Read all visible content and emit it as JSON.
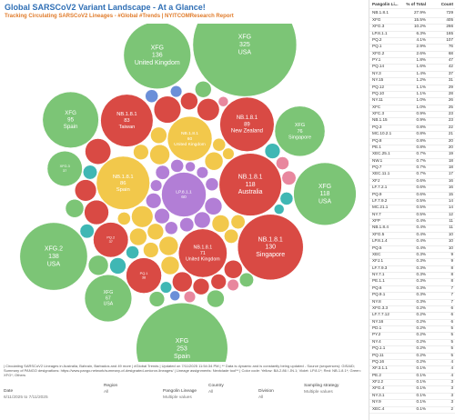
{
  "header": {
    "title": "Global SARSCoV2 Variant Landscape - At a Glance!",
    "subtitle": "Tracking Circulating SARSCoV2 Lineages - #Global #Trends | NYITCOMResearch Report"
  },
  "bubbles": [
    {
      "label": "LP.8.1.1",
      "value": 60,
      "color": "#b27ed6"
    },
    {
      "value": 9,
      "color": "#b27ed6"
    },
    {
      "value": 7,
      "color": "#b27ed6"
    },
    {
      "value": 8,
      "color": "#b27ed6"
    },
    {
      "value": 6,
      "color": "#b27ed6"
    },
    {
      "value": 5,
      "color": "#b27ed6"
    },
    {
      "value": 7,
      "color": "#b27ed6"
    },
    {
      "value": 4,
      "color": "#b27ed6"
    },
    {
      "value": 6,
      "color": "#b27ed6"
    },
    {
      "value": 5,
      "color": "#b27ed6"
    },
    {
      "value": 4,
      "color": "#b27ed6"
    },
    {
      "value": 3,
      "color": "#b27ed6"
    },
    {
      "value": 5,
      "color": "#b27ed6"
    },
    {
      "label": "NB.1.8.1",
      "value": 86,
      "place": "Spain",
      "color": "#f2c84b"
    },
    {
      "label": "NB.1.8.1",
      "value": 60,
      "place": "United Kingdom",
      "color": "#f2c84b"
    },
    {
      "label": "NB.1.8.1",
      "value": 118,
      "place": "Australia",
      "color": "#d94a44"
    },
    {
      "label": "NB.1.8.1",
      "value": 71,
      "place": "United Kingdom",
      "color": "#d94a44"
    },
    {
      "value": 14,
      "color": "#f2c84b"
    },
    {
      "value": 12,
      "color": "#f2c84b"
    },
    {
      "value": 10,
      "color": "#f2c84b"
    },
    {
      "value": 9,
      "color": "#f2c84b"
    },
    {
      "value": 8,
      "color": "#f2c84b"
    },
    {
      "value": 11,
      "color": "#f2c84b"
    },
    {
      "value": 7,
      "color": "#f2c84b"
    },
    {
      "value": 6,
      "color": "#f2c84b"
    },
    {
      "value": 9,
      "color": "#f2c84b"
    },
    {
      "value": 5,
      "color": "#f2c84b"
    },
    {
      "value": 8,
      "color": "#f2c84b"
    },
    {
      "value": 6,
      "color": "#f2c84b"
    },
    {
      "value": 7,
      "color": "#f2c84b"
    },
    {
      "value": 4,
      "color": "#f2c84b"
    },
    {
      "value": 5,
      "color": "#f2c84b"
    },
    {
      "value": 10,
      "color": "#f2c84b"
    },
    {
      "label": "NB.1.8.1",
      "value": 83,
      "place": "Taiwan",
      "color": "#d94a44"
    },
    {
      "label": "NB.1.8.1",
      "value": 89,
      "place": "New Zealand",
      "color": "#d94a44"
    },
    {
      "label": "NB.1.8.1",
      "value": 130,
      "place": "Singapore",
      "color": "#d94a44"
    },
    {
      "label": "PQ.2",
      "value": 37,
      "color": "#d94a44"
    },
    {
      "label": "PQ.1",
      "value": 38,
      "color": "#d94a44"
    },
    {
      "value": 22,
      "color": "#d94a44"
    },
    {
      "value": 18,
      "color": "#d94a44"
    },
    {
      "value": 15,
      "color": "#d94a44"
    },
    {
      "value": 12,
      "color": "#d94a44"
    },
    {
      "value": 20,
      "color": "#d94a44"
    },
    {
      "value": 10,
      "color": "#d94a44"
    },
    {
      "value": 9,
      "color": "#d94a44"
    },
    {
      "value": 14,
      "color": "#d94a44"
    },
    {
      "value": 8,
      "color": "#d94a44"
    },
    {
      "value": 7,
      "color": "#d94a44"
    },
    {
      "value": 8,
      "color": "#3fb7b4"
    },
    {
      "value": 6,
      "color": "#3fb7b4"
    },
    {
      "value": 5,
      "color": "#3fb7b4"
    },
    {
      "value": 7,
      "color": "#3fb7b4"
    },
    {
      "value": 4,
      "color": "#3fb7b4"
    },
    {
      "value": 3,
      "color": "#3fb7b4"
    },
    {
      "value": 5,
      "color": "#3fb7b4"
    },
    {
      "value": 6,
      "color": "#3fb7b4"
    },
    {
      "value": 5,
      "color": "#e8879e"
    },
    {
      "value": 4,
      "color": "#e8879e"
    },
    {
      "value": 6,
      "color": "#e8879e"
    },
    {
      "value": 3,
      "color": "#e8879e"
    },
    {
      "value": 4,
      "color": "#e8879e"
    },
    {
      "value": 5,
      "color": "#6b8fd8"
    },
    {
      "value": 3,
      "color": "#6b8fd8"
    },
    {
      "value": 4,
      "color": "#6b8fd8"
    },
    {
      "value": 10,
      "color": "#7cc576"
    },
    {
      "value": 8,
      "color": "#7cc576"
    },
    {
      "value": 12,
      "color": "#7cc576"
    },
    {
      "value": 6,
      "color": "#7cc576"
    },
    {
      "value": 9,
      "color": "#7cc576"
    },
    {
      "value": 7,
      "color": "#7cc576"
    },
    {
      "label": "XFG.3",
      "value": 37,
      "color": "#7cc576"
    },
    {
      "label": "XFG",
      "value": 67,
      "place": "USA",
      "color": "#7cc576"
    },
    {
      "label": "XFG",
      "value": 76,
      "place": "Singapore",
      "color": "#7cc576"
    },
    {
      "label": "XFG",
      "value": 95,
      "place": "Spain",
      "color": "#7cc576"
    },
    {
      "label": "XFG",
      "value": 118,
      "place": "USA",
      "color": "#7cc576"
    },
    {
      "label": "XFG.2",
      "value": 138,
      "place": "USA",
      "color": "#7cc576"
    },
    {
      "label": "XFG",
      "value": 136,
      "place": "United Kingdom",
      "color": "#7cc576"
    },
    {
      "label": "XFG",
      "value": 253,
      "place": "Spain",
      "color": "#7cc576"
    },
    {
      "label": "XFG",
      "value": 325,
      "place": "USA",
      "color": "#7cc576"
    }
  ],
  "table": {
    "columns": [
      "Pangolin Li...",
      "% of Total",
      "Count"
    ],
    "rows": [
      [
        "NB.1.8.1",
        "27.9%",
        "729"
      ],
      [
        "XFG",
        "15.5%",
        "405"
      ],
      [
        "XFG.3",
        "10.2%",
        "266"
      ],
      [
        "LP.8.1.1",
        "6.3%",
        "165"
      ],
      [
        "PQ.2",
        "4.1%",
        "107"
      ],
      [
        "PQ.1",
        "2.9%",
        "76"
      ],
      [
        "XFG.2",
        "2.6%",
        "68"
      ],
      [
        "PY.1",
        "1.8%",
        "47"
      ],
      [
        "PQ.14",
        "1.6%",
        "42"
      ],
      [
        "NY.3",
        "1.4%",
        "37"
      ],
      [
        "NY.15",
        "1.2%",
        "31"
      ],
      [
        "PQ.12",
        "1.1%",
        "29"
      ],
      [
        "PQ.10",
        "1.1%",
        "28"
      ],
      [
        "NY.11",
        "1.0%",
        "26"
      ],
      [
        "XFC",
        "1.0%",
        "25"
      ],
      [
        "XFC.3",
        "0.9%",
        "23"
      ],
      [
        "NB.1.15",
        "0.9%",
        "23"
      ],
      [
        "PQ.3",
        "0.8%",
        "22"
      ],
      [
        "MC.10.2.1",
        "0.8%",
        "21"
      ],
      [
        "PQ.8",
        "0.8%",
        "20"
      ],
      [
        "PE.1",
        "0.8%",
        "20"
      ],
      [
        "XEC.25.1",
        "0.7%",
        "19"
      ],
      [
        "NW.1",
        "0.7%",
        "18"
      ],
      [
        "PQ.7",
        "0.7%",
        "18"
      ],
      [
        "XEC.11.1",
        "0.7%",
        "17"
      ],
      [
        "XFJ",
        "0.6%",
        "16"
      ],
      [
        "LF.7.2.1",
        "0.6%",
        "16"
      ],
      [
        "PQ.9",
        "0.6%",
        "15"
      ],
      [
        "LF.7.9.2",
        "0.5%",
        "14"
      ],
      [
        "MC.21.1",
        "0.5%",
        "14"
      ],
      [
        "NY.7",
        "0.5%",
        "12"
      ],
      [
        "XFP",
        "0.4%",
        "11"
      ],
      [
        "NB.1.8.4",
        "0.4%",
        "11"
      ],
      [
        "XFG.5",
        "0.4%",
        "10"
      ],
      [
        "LP.8.1.4",
        "0.4%",
        "10"
      ],
      [
        "PQ.5",
        "0.4%",
        "10"
      ],
      [
        "XEC",
        "0.3%",
        "9"
      ],
      [
        "XFJ.1",
        "0.3%",
        "9"
      ],
      [
        "LF.7.9.3",
        "0.3%",
        "8"
      ],
      [
        "NY.7.1",
        "0.3%",
        "8"
      ],
      [
        "PE.1.1",
        "0.3%",
        "8"
      ],
      [
        "PQ.6",
        "0.3%",
        "7"
      ],
      [
        "PQ.9.1",
        "0.3%",
        "7"
      ],
      [
        "NY.8",
        "0.3%",
        "7"
      ],
      [
        "XFG.3.3",
        "0.2%",
        "6"
      ],
      [
        "LF.7.7.12",
        "0.2%",
        "6"
      ],
      [
        "NY.16",
        "0.2%",
        "6"
      ],
      [
        "PD.1",
        "0.2%",
        "5"
      ],
      [
        "PY.2",
        "0.2%",
        "5"
      ],
      [
        "NY.4",
        "0.2%",
        "5"
      ],
      [
        "PQ.1.1",
        "0.2%",
        "5"
      ],
      [
        "PQ.11",
        "0.2%",
        "5"
      ],
      [
        "PQ.16",
        "0.2%",
        "4"
      ],
      [
        "XF.3.1.1",
        "0.1%",
        "4"
      ],
      [
        "PE.2",
        "0.1%",
        "4"
      ],
      [
        "XFJ.2",
        "0.1%",
        "3"
      ],
      [
        "XFG.4",
        "0.1%",
        "3"
      ],
      [
        "NY.3.1",
        "0.1%",
        "3"
      ],
      [
        "NY.9",
        "0.1%",
        "3"
      ],
      [
        "XEC.4",
        "0.1%",
        "2"
      ]
    ]
  },
  "footer": {
    "note": "| Circulating SARSCoV2 Lineages in Australia, Bahrain, Barbados and 49 more | #Global Trends | Updated on 7/11/2025 11:54:34 PM | ** Data is dynamic and is constantly being updated - Source (sequences): GISAID; Summary of PANGO designations: https://www.pango.network/summary-of-designated-omicron-lineages/ | Lineage assignments: Nextclade tool** | Color code: Yellow: BA.2.86 / JN.1; Violet: LP.8.1*; Red: NB.1.8.1*; Green: XFG*; Others"
  },
  "filters": [
    {
      "label": "Date",
      "value": "6/11/2025 to 7/11/2025"
    },
    {
      "label": "Region",
      "value": "All"
    },
    {
      "label": "Pangolin Lineage",
      "value": "Multiple values"
    },
    {
      "label": "Country",
      "value": "All"
    },
    {
      "label": "Division",
      "value": "All"
    },
    {
      "label": "Sampling strategy",
      "value": "Multiple values"
    }
  ]
}
